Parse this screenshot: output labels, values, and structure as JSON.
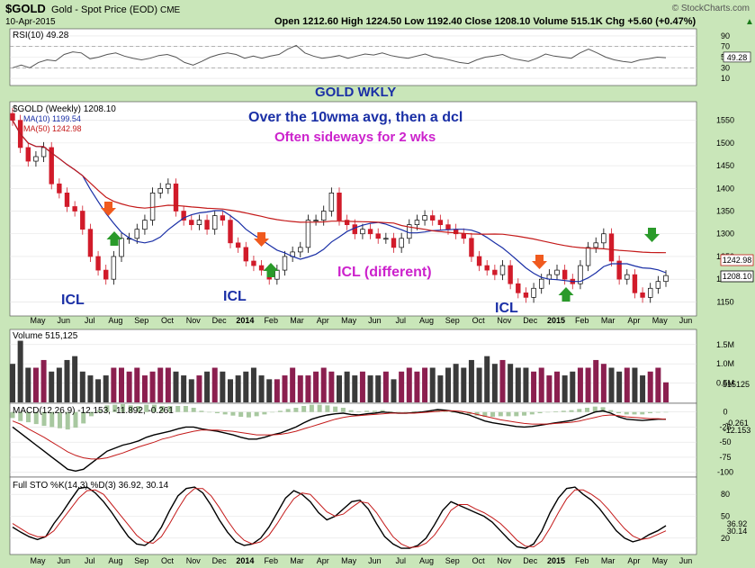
{
  "header": {
    "symbol": "$GOLD",
    "name": "Gold - Spot Price (EOD)",
    "exchange": "CME",
    "date": "10-Apr-2015",
    "ohlc": "Open 1212.60  High 1224.50  Low 1192.40  Close 1208.10  Volume 515.1K  Chg +5.60 (+0.47%)",
    "chg_arrow": "▲",
    "brand": "© StockCharts.com"
  },
  "annotations": {
    "gold_wkly": "GOLD WKLY",
    "over_10wma": "Over the 10wma avg, then a dcl",
    "often_sideways": "Often sideways for 2 wks",
    "icl_different": "ICL (different)",
    "icl": "ICL"
  },
  "colors": {
    "bg": "#c9e6b9",
    "panel": "#ffffff",
    "up": "#ffffff",
    "down": "#d11b2a",
    "ma10": "#1a2fa6",
    "ma50": "#c41a1a",
    "vol_up": "#8b1f4f",
    "vol_down": "#3a3a3a",
    "annot_blue": "#1a2fa6",
    "annot_magenta": "#cc22cc",
    "arrow_orange": "#f05a1e",
    "arrow_green": "#2a9a2a",
    "rsi_line": "#555555"
  },
  "x_labels": [
    "May",
    "Jun",
    "Jul",
    "Aug",
    "Sep",
    "Oct",
    "Nov",
    "Dec",
    "2014",
    "Feb",
    "Mar",
    "Apr",
    "May",
    "Jun",
    "Jul",
    "Aug",
    "Sep",
    "Oct",
    "Nov",
    "Dec",
    "2015",
    "Feb",
    "Mar",
    "Apr",
    "May",
    "Jun"
  ],
  "chart_data": [
    {
      "type": "line",
      "title": "RSI(10) 49.28",
      "yticks": [
        10,
        30,
        50,
        70,
        90
      ],
      "ylim": [
        0,
        100
      ],
      "last_value": 49.28,
      "values": [
        30,
        35,
        30,
        40,
        45,
        43,
        55,
        60,
        58,
        47,
        50,
        55,
        58,
        52,
        48,
        45,
        48,
        53,
        55,
        50,
        40,
        35,
        42,
        50,
        55,
        58,
        55,
        48,
        52,
        48,
        52,
        55,
        65,
        72,
        58,
        52,
        48,
        50,
        53,
        48,
        52,
        56,
        54,
        58,
        53,
        50,
        48,
        52,
        56,
        50,
        48,
        44,
        40,
        38,
        45,
        50,
        52,
        55,
        48,
        45,
        42,
        48,
        56,
        52,
        50,
        48,
        58,
        65,
        58,
        50,
        45,
        42,
        40,
        45,
        47,
        50,
        49
      ]
    },
    {
      "type": "candlestick",
      "title": "$GOLD (Weekly) 1208.10",
      "legend": [
        {
          "name": "MA(10) 1199.54",
          "color": "#1a2fa6"
        },
        {
          "name": "MA(50) 1242.98",
          "color": "#c41a1a"
        }
      ],
      "yticks": [
        1150,
        1200,
        1250,
        1300,
        1350,
        1400,
        1450,
        1500,
        1550
      ],
      "ylim": [
        1125,
        1585
      ],
      "last_ma50": "1242.98",
      "last_close": "1208.10",
      "closes": [
        1550,
        1490,
        1460,
        1470,
        1490,
        1410,
        1390,
        1360,
        1350,
        1310,
        1250,
        1220,
        1200,
        1250,
        1290,
        1290,
        1310,
        1330,
        1390,
        1400,
        1410,
        1350,
        1330,
        1320,
        1330,
        1310,
        1340,
        1330,
        1280,
        1270,
        1240,
        1230,
        1220,
        1200,
        1220,
        1250,
        1260,
        1270,
        1330,
        1330,
        1350,
        1390,
        1330,
        1320,
        1300,
        1310,
        1300,
        1290,
        1290,
        1270,
        1290,
        1320,
        1330,
        1340,
        1330,
        1320,
        1310,
        1300,
        1290,
        1250,
        1230,
        1220,
        1210,
        1230,
        1190,
        1170,
        1160,
        1180,
        1200,
        1210,
        1220,
        1200,
        1190,
        1230,
        1270,
        1280,
        1300,
        1240,
        1200,
        1210,
        1170,
        1160,
        1180,
        1195,
        1208
      ],
      "dates_first_last": [
        "Apr 2013",
        "Apr 2015"
      ]
    },
    {
      "type": "bar",
      "title": "Volume 515,125",
      "yticks": [
        "0.5M",
        "1.0M",
        "1.5M"
      ],
      "ylim": [
        0,
        1.8
      ],
      "last_value": "515125",
      "values": [
        1.0,
        1.6,
        0.9,
        0.9,
        1.1,
        0.8,
        0.9,
        1.1,
        1.2,
        0.8,
        0.7,
        0.6,
        0.7,
        0.9,
        0.9,
        0.8,
        0.9,
        0.7,
        0.8,
        0.9,
        0.9,
        0.8,
        0.7,
        0.6,
        0.7,
        0.8,
        0.9,
        0.8,
        0.6,
        0.7,
        0.8,
        0.9,
        0.7,
        0.6,
        0.6,
        0.7,
        0.9,
        0.7,
        0.7,
        0.8,
        0.9,
        0.8,
        0.7,
        0.8,
        0.7,
        0.8,
        0.7,
        0.7,
        0.8,
        0.6,
        0.8,
        0.9,
        0.8,
        0.9,
        0.9,
        0.7,
        0.9,
        1.0,
        0.9,
        1.1,
        0.9,
        1.2,
        1.0,
        1.1,
        1.0,
        0.9,
        0.9,
        0.8,
        0.9,
        0.7,
        0.8,
        0.7,
        0.8,
        0.9,
        0.9,
        1.1,
        1.0,
        0.9,
        0.8,
        0.9,
        0.9,
        0.7,
        0.8,
        0.9,
        0.52
      ]
    },
    {
      "type": "line",
      "title": "MACD(12,26,9) -12.153, -11.892, -0.261",
      "yticks": [
        -100,
        -75,
        -50,
        -25,
        0
      ],
      "ylim": [
        -105,
        10
      ],
      "last_values": [
        "-0.261",
        "-12.153"
      ],
      "macd": [
        -25,
        -35,
        -45,
        -55,
        -65,
        -75,
        -85,
        -95,
        -98,
        -95,
        -85,
        -75,
        -65,
        -60,
        -55,
        -52,
        -48,
        -42,
        -38,
        -35,
        -32,
        -28,
        -25,
        -25,
        -28,
        -30,
        -32,
        -35,
        -38,
        -42,
        -45,
        -45,
        -42,
        -38,
        -35,
        -30,
        -25,
        -18,
        -12,
        -8,
        -5,
        -3,
        -2,
        -4,
        -5,
        -3,
        -2,
        0,
        -1,
        -2,
        -2,
        -1,
        0,
        2,
        4,
        3,
        1,
        -2,
        -5,
        -10,
        -15,
        -18,
        -20,
        -22,
        -24,
        -25,
        -24,
        -22,
        -20,
        -18,
        -16,
        -14,
        -10,
        -5,
        0,
        2,
        -2,
        -8,
        -12,
        -13,
        -14,
        -13,
        -12,
        -12
      ],
      "signal": [
        -15,
        -20,
        -28,
        -35,
        -42,
        -50,
        -58,
        -66,
        -72,
        -76,
        -78,
        -78,
        -76,
        -72,
        -68,
        -63,
        -58,
        -54,
        -50,
        -45,
        -42,
        -38,
        -35,
        -32,
        -30,
        -30,
        -30,
        -31,
        -32,
        -34,
        -36,
        -38,
        -38,
        -38,
        -37,
        -35,
        -32,
        -28,
        -24,
        -20,
        -16,
        -12,
        -9,
        -7,
        -6,
        -5,
        -4,
        -3,
        -2,
        -2,
        -2,
        -2,
        -1,
        0,
        1,
        2,
        2,
        1,
        -1,
        -4,
        -7,
        -10,
        -13,
        -15,
        -17,
        -19,
        -20,
        -20,
        -20,
        -19,
        -18,
        -17,
        -15,
        -12,
        -9,
        -6,
        -5,
        -6,
        -8,
        -9,
        -10,
        -11,
        -11,
        -12
      ]
    },
    {
      "type": "line",
      "title": "Full STO %K(14,3) %D(3) 36.92, 30.14",
      "yticks": [
        20,
        50,
        80
      ],
      "ylim": [
        0,
        100
      ],
      "last_values": [
        "36.92",
        "30.14"
      ],
      "k": [
        35,
        28,
        22,
        18,
        22,
        40,
        55,
        72,
        88,
        90,
        82,
        70,
        55,
        38,
        22,
        12,
        10,
        18,
        35,
        58,
        78,
        88,
        90,
        82,
        65,
        45,
        28,
        15,
        10,
        12,
        20,
        35,
        55,
        75,
        85,
        80,
        70,
        55,
        45,
        50,
        60,
        70,
        72,
        60,
        40,
        22,
        12,
        6,
        6,
        10,
        20,
        38,
        58,
        70,
        65,
        60,
        55,
        50,
        42,
        30,
        18,
        8,
        6,
        12,
        30,
        55,
        75,
        88,
        90,
        80,
        72,
        60,
        45,
        30,
        20,
        15,
        18,
        25,
        30,
        37
      ],
      "d": [
        40,
        33,
        26,
        22,
        22,
        30,
        45,
        60,
        75,
        85,
        86,
        80,
        66,
        52,
        38,
        24,
        15,
        13,
        22,
        40,
        60,
        78,
        88,
        88,
        78,
        62,
        44,
        28,
        17,
        12,
        15,
        24,
        40,
        58,
        74,
        82,
        80,
        68,
        56,
        50,
        53,
        62,
        70,
        68,
        55,
        38,
        22,
        12,
        7,
        8,
        13,
        24,
        40,
        58,
        66,
        66,
        60,
        55,
        48,
        40,
        29,
        17,
        9,
        8,
        16,
        34,
        55,
        74,
        86,
        86,
        80,
        72,
        60,
        46,
        33,
        23,
        18,
        20,
        25,
        30
      ]
    }
  ]
}
